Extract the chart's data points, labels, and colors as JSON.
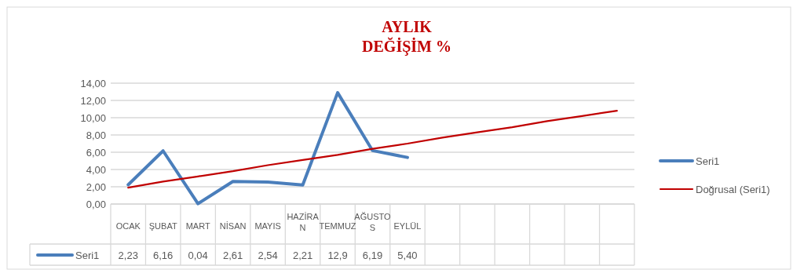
{
  "chart_data": {
    "type": "line",
    "title": "AYLIK\nDEĞİŞİM %",
    "categories": [
      "OCAK",
      "ŞUBAT",
      "MART",
      "NİSAN",
      "MAYIS",
      "HAZİRAN",
      "TEMMUZ",
      "AĞUSTOS",
      "EYLÜL",
      null,
      null,
      null,
      null,
      null,
      null
    ],
    "series": [
      {
        "name": "Seri1",
        "color": "#4a7ebb",
        "values": [
          2.23,
          6.16,
          0.04,
          2.61,
          2.54,
          2.21,
          12.9,
          6.19,
          5.4,
          null,
          null,
          null,
          null,
          null,
          null
        ],
        "value_labels": [
          "2,23",
          "6,16",
          "0,04",
          "2,61",
          "2,54",
          "2,21",
          "12,9",
          "6,19",
          "5,40",
          null,
          null,
          null,
          null,
          null,
          null
        ]
      },
      {
        "name": "Doğrusal (Seri1)",
        "color": "#c00000",
        "values": [
          1.9,
          2.6,
          3.2,
          3.8,
          4.5,
          5.1,
          5.7,
          6.4,
          7.0,
          7.7,
          8.3,
          8.9,
          9.6,
          10.2,
          10.8
        ]
      }
    ],
    "ylim": [
      0,
      14
    ],
    "yticks": [
      {
        "value": 0,
        "label": "0,00"
      },
      {
        "value": 2,
        "label": "2,00"
      },
      {
        "value": 4,
        "label": "4,00"
      },
      {
        "value": 6,
        "label": "6,00"
      },
      {
        "value": 8,
        "label": "8,00"
      },
      {
        "value": 10,
        "label": "10,00"
      },
      {
        "value": 12,
        "label": "12,00"
      },
      {
        "value": 14,
        "label": "14,00"
      }
    ],
    "grid": "y",
    "legend": "right",
    "line_style": "solid"
  }
}
